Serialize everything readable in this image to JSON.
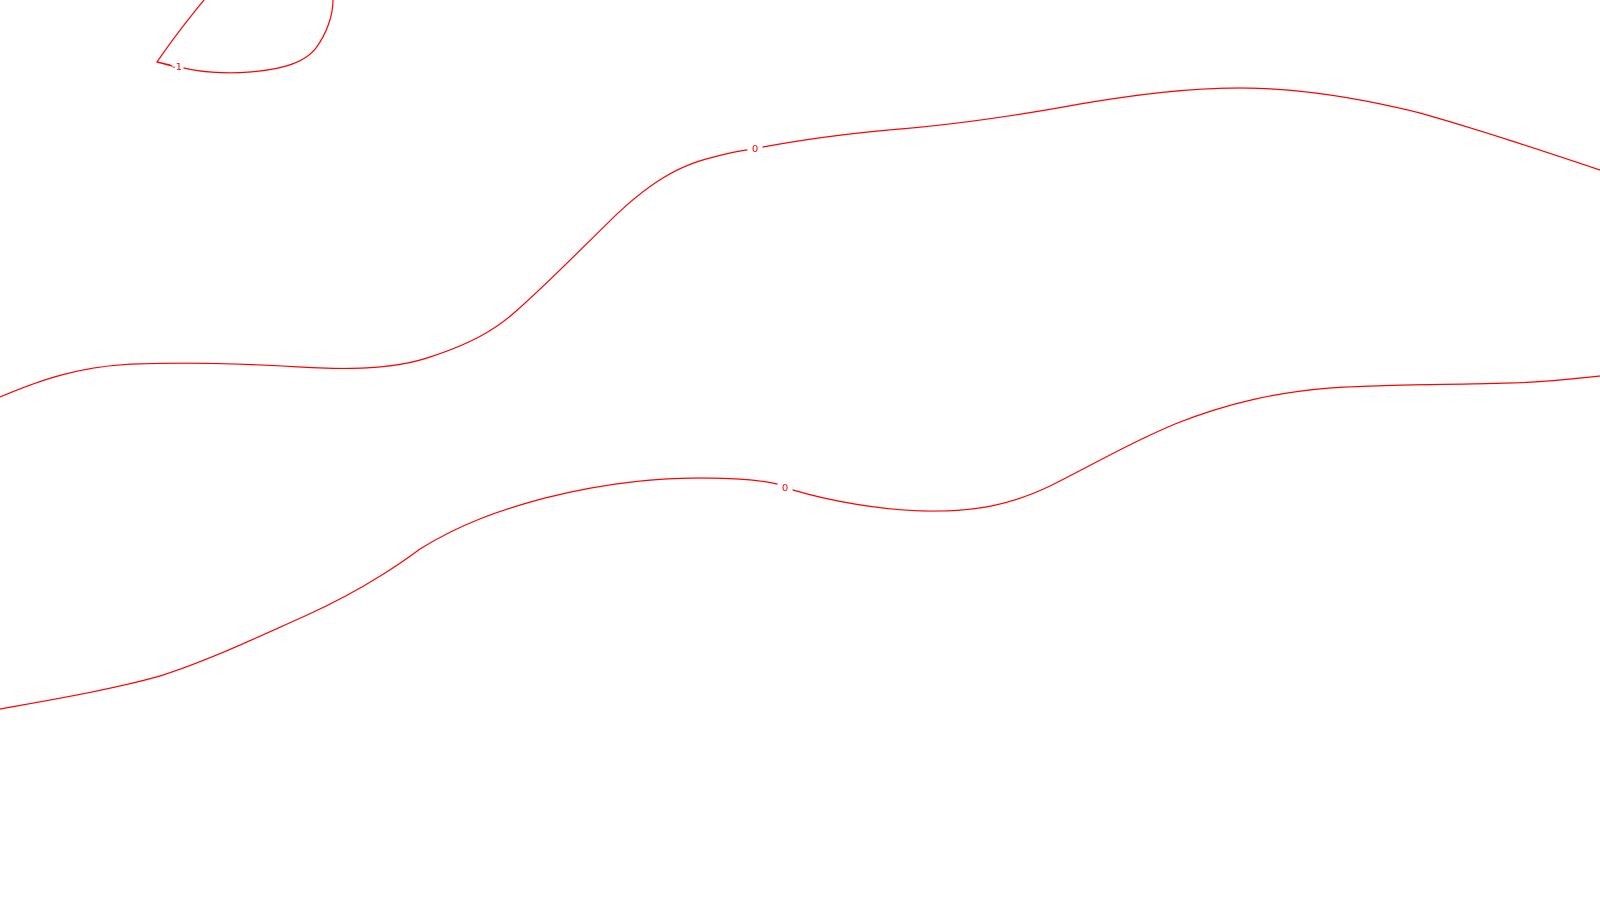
{
  "colors": {
    "background": "#ffffff",
    "contour_line": "#ff0000"
  },
  "contours": [
    {
      "level": "-1",
      "label": "-1",
      "shape": "closed loop"
    },
    {
      "level": "0",
      "label": "0",
      "shape": "open curve"
    },
    {
      "level": "0",
      "label": "0",
      "shape": "open curve"
    }
  ]
}
